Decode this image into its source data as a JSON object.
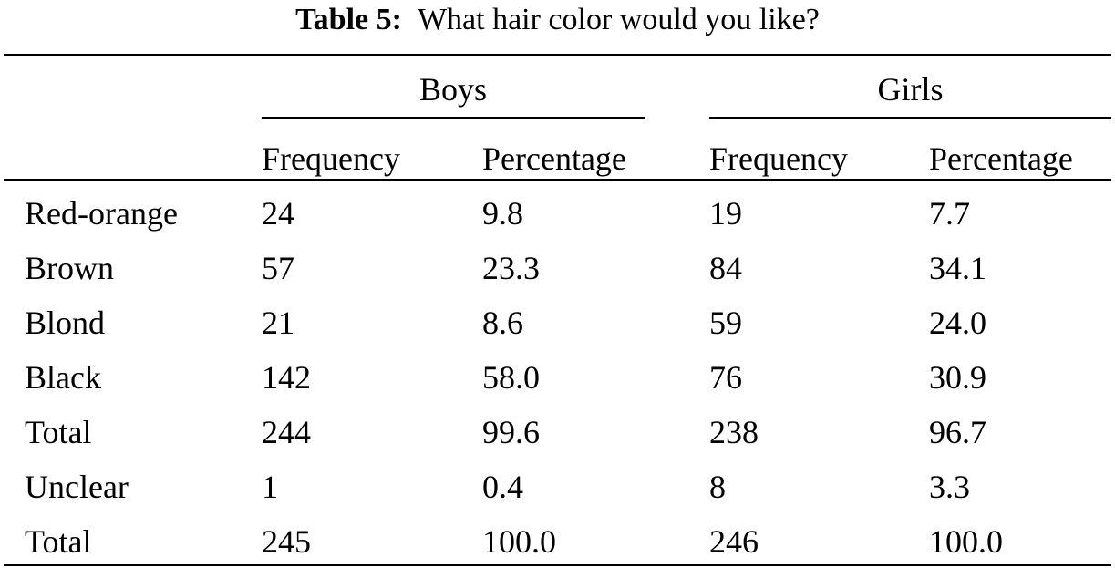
{
  "caption": {
    "label": "Table 5:",
    "text": "What hair color would you like?"
  },
  "table": {
    "groups": [
      "Boys",
      "Girls"
    ],
    "columns": [
      "Frequency",
      "Percentage",
      "Frequency",
      "Percentage"
    ],
    "rows": [
      {
        "label": "Red-orange",
        "values": [
          "24",
          "9.8",
          "19",
          "7.7"
        ]
      },
      {
        "label": "Brown",
        "values": [
          "57",
          "23.3",
          "84",
          "34.1"
        ]
      },
      {
        "label": "Blond",
        "values": [
          "21",
          "8.6",
          "59",
          "24.0"
        ]
      },
      {
        "label": "Black",
        "values": [
          "142",
          "58.0",
          "76",
          "30.9"
        ]
      },
      {
        "label": "Total",
        "values": [
          "244",
          "99.6",
          "238",
          "96.7"
        ]
      },
      {
        "label": "Unclear",
        "values": [
          "1",
          "0.4",
          "8",
          "3.3"
        ]
      },
      {
        "label": "Total",
        "values": [
          "245",
          "100.0",
          "246",
          "100.0"
        ]
      }
    ]
  }
}
